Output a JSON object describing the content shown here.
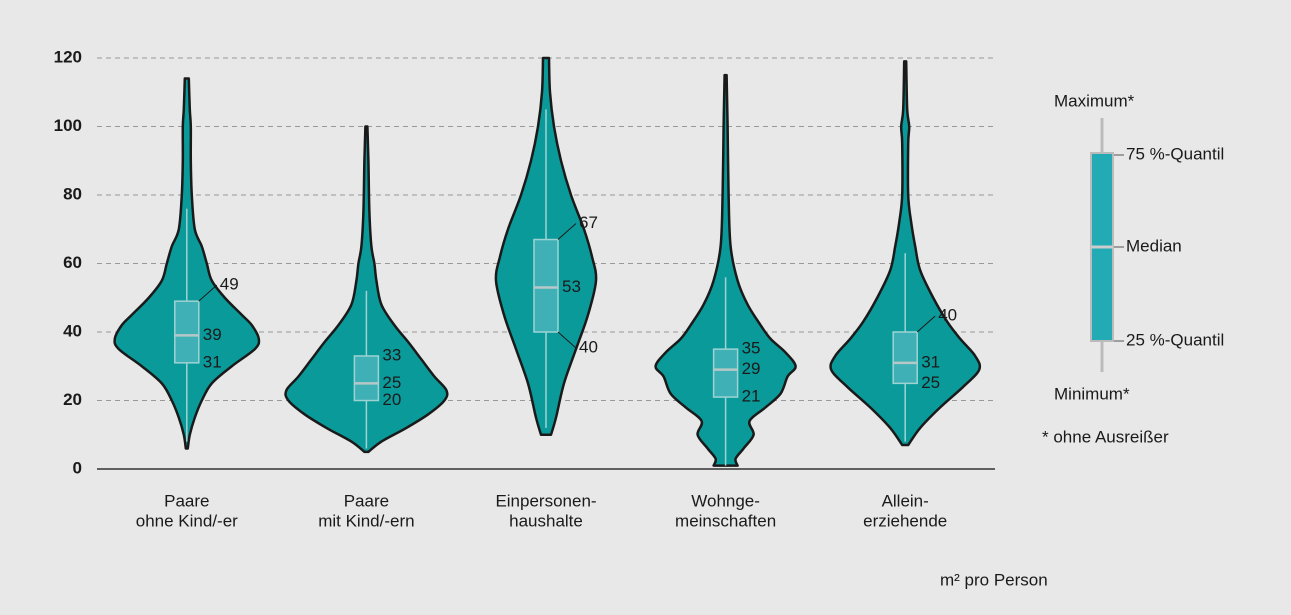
{
  "chart_data": {
    "type": "violin",
    "categories": [
      [
        "Paare",
        "ohne Kind/-er"
      ],
      [
        "Paare",
        "mit Kind/-ern"
      ],
      [
        "Einpersonen-",
        "haushalte"
      ],
      [
        "Wohnge-",
        "meinschaften"
      ],
      [
        "Allein-",
        "erziehende"
      ]
    ],
    "ylim": [
      0,
      120
    ],
    "yticks": [
      0,
      20,
      40,
      60,
      80,
      100,
      120
    ],
    "grid": true,
    "x_label": "m² pro Person",
    "color": "#0a9a9a",
    "series": [
      {
        "min": 8,
        "q1": 31,
        "median": 39,
        "q3": 49,
        "max": 76,
        "label_outside": [
          false,
          false,
          true
        ],
        "density_y": [
          6,
          10,
          15,
          20,
          25,
          30,
          35,
          38,
          42,
          45,
          50,
          55,
          60,
          65,
          70,
          80,
          90,
          100,
          105,
          114
        ],
        "density_width": [
          1,
          3,
          8,
          15,
          25,
          45,
          68,
          72,
          65,
          55,
          38,
          25,
          20,
          15,
          8,
          5,
          4,
          4,
          3,
          2
        ]
      },
      {
        "min": 6,
        "q1": 20,
        "median": 25,
        "q3": 33,
        "max": 52,
        "label_outside": [
          false,
          false,
          false
        ],
        "density_y": [
          5,
          8,
          12,
          16,
          20,
          23,
          27,
          32,
          37,
          42,
          48,
          55,
          60,
          65,
          75,
          90,
          100
        ],
        "density_width": [
          2,
          15,
          40,
          62,
          78,
          80,
          68,
          55,
          42,
          28,
          15,
          10,
          8,
          5,
          3,
          2,
          1
        ]
      },
      {
        "min": 12,
        "q1": 40,
        "median": 53,
        "q3": 67,
        "max": 105,
        "label_outside": [
          true,
          false,
          true
        ],
        "density_y": [
          10,
          15,
          25,
          35,
          45,
          55,
          62,
          70,
          80,
          90,
          100,
          110,
          120
        ],
        "density_width": [
          5,
          10,
          18,
          30,
          42,
          50,
          46,
          38,
          25,
          15,
          8,
          4,
          3
        ]
      },
      {
        "min": 1,
        "q1": 21,
        "median": 29,
        "q3": 35,
        "max": 56,
        "label_outside": [
          false,
          false,
          false
        ],
        "density_y": [
          1,
          3,
          6,
          10,
          14,
          18,
          22,
          27,
          30,
          34,
          38,
          42,
          48,
          55,
          65,
          80,
          100,
          115
        ],
        "density_width": [
          12,
          10,
          18,
          28,
          24,
          40,
          55,
          62,
          70,
          60,
          45,
          35,
          22,
          12,
          5,
          3,
          2,
          1
        ]
      },
      {
        "min": 8,
        "q1": 25,
        "median": 31,
        "q3": 40,
        "max": 63,
        "label_outside": [
          false,
          false,
          true
        ],
        "density_y": [
          7,
          12,
          18,
          24,
          29,
          33,
          38,
          43,
          50,
          58,
          65,
          72,
          80,
          95,
          100,
          105,
          119
        ],
        "density_width": [
          3,
          15,
          35,
          58,
          74,
          70,
          55,
          42,
          28,
          15,
          10,
          6,
          3,
          3,
          4,
          2,
          1
        ]
      }
    ],
    "legend": {
      "max": "Maximum*",
      "q3": "75 %-Quantil",
      "median": "Median",
      "q1": "25 %-Quantil",
      "min": "Minimum*",
      "note": "* ohne Ausreißer"
    }
  }
}
